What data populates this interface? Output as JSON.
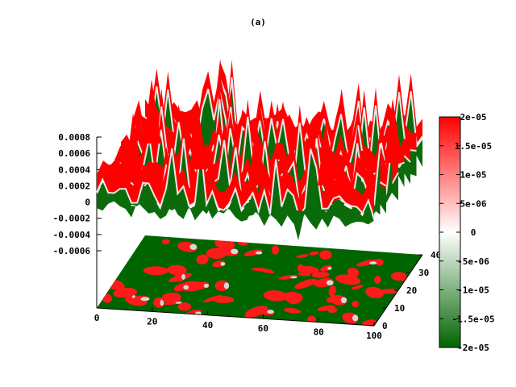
{
  "chart_data": {
    "type": "surface3d",
    "title": "(a)",
    "z_axis": {
      "range": [
        -0.0006,
        0.0008
      ],
      "ticks": [
        "0.0008",
        "0.0006",
        "0.0004",
        "0.0002",
        "0",
        "-0.0002",
        "-0.0004",
        "-0.0006"
      ]
    },
    "x_axis": {
      "range": [
        0,
        100
      ],
      "ticks": [
        "0",
        "20",
        "40",
        "60",
        "80",
        "100"
      ]
    },
    "y_axis": {
      "range": [
        0,
        40
      ],
      "ticks": [
        "0",
        "10",
        "20",
        "30",
        "40"
      ]
    },
    "colorbar": {
      "range": [
        -2e-05,
        2e-05
      ],
      "ticks": [
        "2e-05",
        "1.5e-05",
        "1e-05",
        "5e-06",
        "0",
        "-5e-06",
        "-1e-05",
        "-1.5e-05",
        "-2e-05"
      ],
      "colors": {
        "high": "#ff0000",
        "mid": "#ffffff",
        "low": "#006400"
      }
    },
    "grid": false,
    "legend": "colorbar-right"
  }
}
